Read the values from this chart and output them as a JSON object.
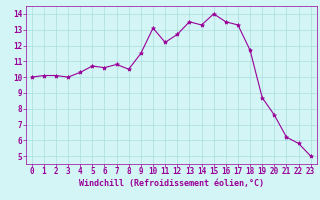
{
  "x": [
    0,
    1,
    2,
    3,
    4,
    5,
    6,
    7,
    8,
    9,
    10,
    11,
    12,
    13,
    14,
    15,
    16,
    17,
    18,
    19,
    20,
    21,
    22,
    23
  ],
  "y": [
    10.0,
    10.1,
    10.1,
    10.0,
    10.3,
    10.7,
    10.6,
    10.8,
    10.5,
    11.5,
    13.1,
    12.2,
    12.7,
    13.5,
    13.3,
    14.0,
    13.5,
    13.3,
    11.7,
    8.7,
    7.6,
    6.2,
    5.8,
    5.0
  ],
  "line_color": "#990099",
  "marker": "*",
  "marker_size": 3,
  "bg_color": "#d4f5f5",
  "grid_color": "#aadddd",
  "xlabel": "Windchill (Refroidissement éolien,°C)",
  "xlabel_color": "#990099",
  "xlabel_fontsize": 6,
  "tick_color": "#990099",
  "tick_fontsize": 5.5,
  "ylim": [
    4.5,
    14.5
  ],
  "xlim": [
    -0.5,
    23.5
  ],
  "yticks": [
    5,
    6,
    7,
    8,
    9,
    10,
    11,
    12,
    13,
    14
  ],
  "xticks": [
    0,
    1,
    2,
    3,
    4,
    5,
    6,
    7,
    8,
    9,
    10,
    11,
    12,
    13,
    14,
    15,
    16,
    17,
    18,
    19,
    20,
    21,
    22,
    23
  ]
}
